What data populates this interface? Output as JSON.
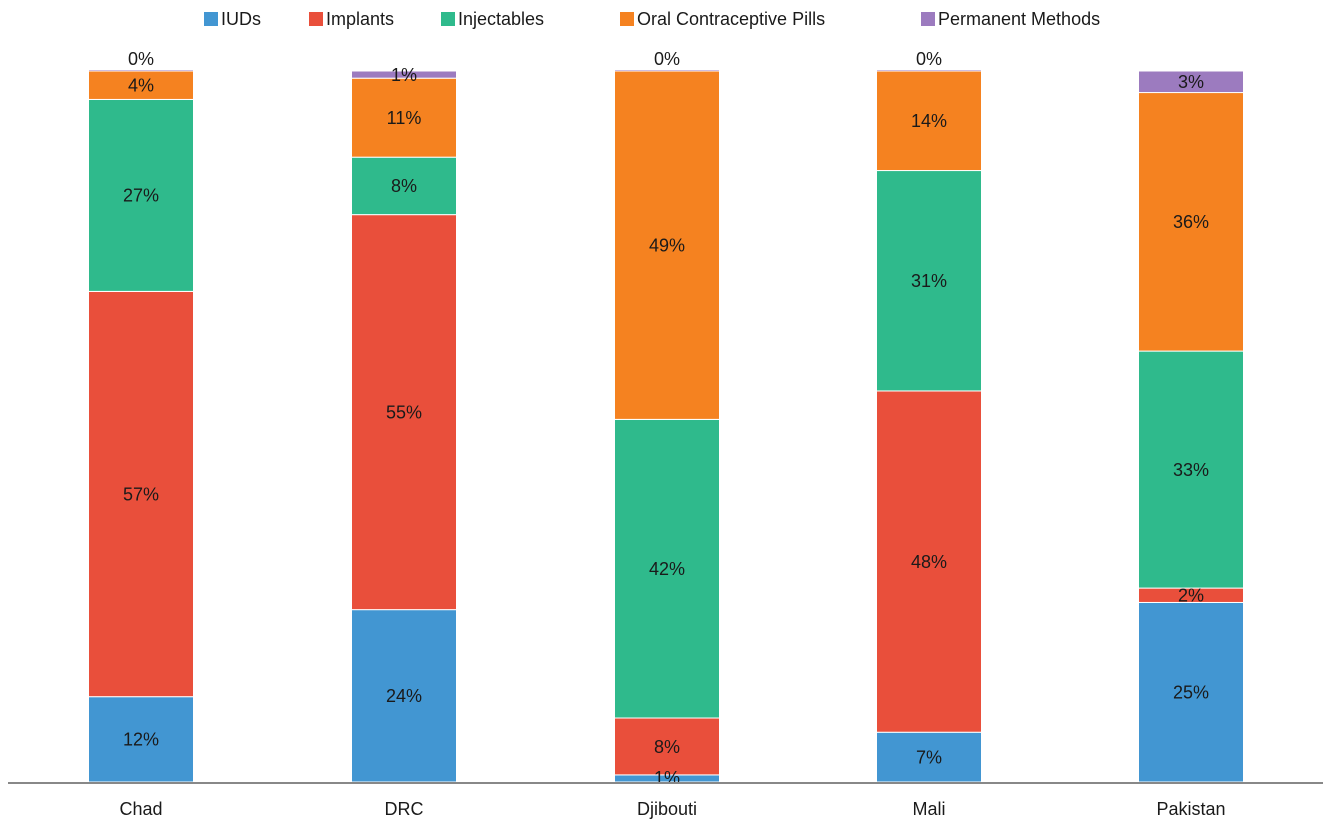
{
  "chart_data": {
    "type": "bar",
    "stacked": true,
    "categories": [
      "Chad",
      "DRC",
      "Djibouti",
      "Mali",
      "Pakistan"
    ],
    "series": [
      {
        "name": "IUDs",
        "color": "#4296d2",
        "values": [
          12,
          24,
          1,
          7,
          25
        ],
        "labels": [
          "12%",
          "24%",
          "1%",
          "7%",
          "25%"
        ]
      },
      {
        "name": "Implants",
        "color": "#e94f3b",
        "values": [
          57,
          55,
          8,
          48,
          2
        ],
        "labels": [
          "57%",
          "55%",
          "8%",
          "48%",
          "2%"
        ]
      },
      {
        "name": "Injectables",
        "color": "#2fba8c",
        "values": [
          27,
          8,
          42,
          31,
          33
        ],
        "labels": [
          "27%",
          "8%",
          "42%",
          "31%",
          "33%"
        ]
      },
      {
        "name": "Oral Contraceptive Pills",
        "color": "#f58220",
        "values": [
          4,
          11,
          49,
          14,
          36
        ],
        "labels": [
          "4%",
          "11%",
          "49%",
          "14%",
          "36%"
        ]
      },
      {
        "name": "Permanent Methods",
        "color": "#9c7bbf",
        "values": [
          0,
          1,
          0,
          0,
          3
        ],
        "labels": [
          "0%",
          "1%",
          "0%",
          "0%",
          "3%"
        ]
      }
    ],
    "ylim": [
      0,
      100
    ],
    "grid": false,
    "legend_position": "top"
  }
}
